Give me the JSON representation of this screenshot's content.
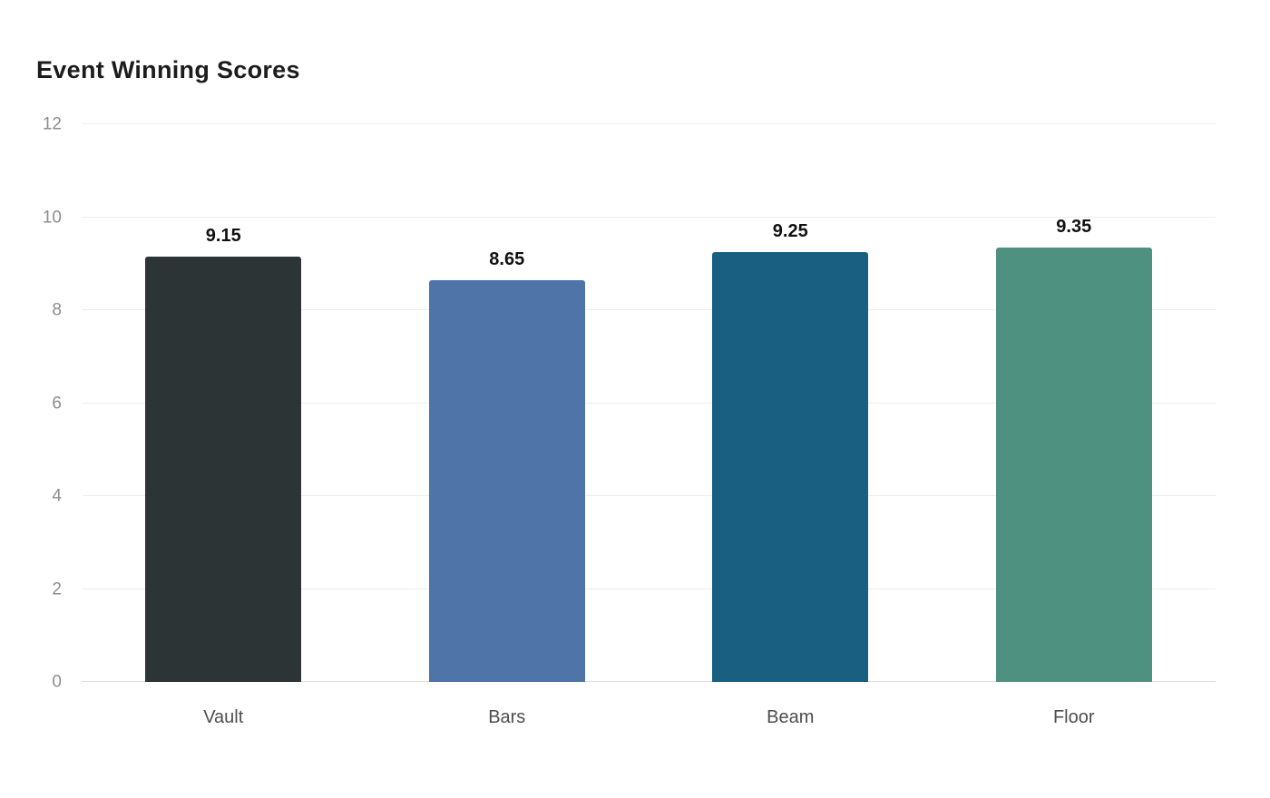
{
  "chart_data": {
    "type": "bar",
    "title": "Event Winning Scores",
    "categories": [
      "Vault",
      "Bars",
      "Beam",
      "Floor"
    ],
    "values": [
      9.15,
      8.65,
      9.25,
      9.35
    ],
    "value_labels": [
      "9.15",
      "8.65",
      "9.25",
      "9.35"
    ],
    "bar_colors": [
      "#2d3436",
      "#4e74a8",
      "#185f82",
      "#4f9180"
    ],
    "xlabel": "",
    "ylabel": "",
    "ylim": [
      0,
      12
    ],
    "yticks": [
      0,
      2,
      4,
      6,
      8,
      10,
      12
    ],
    "grid": true,
    "legend": "none",
    "background_color": "#ffffff",
    "grid_color": "#ededed",
    "tick_label_color": "#8d8d8d",
    "category_label_color": "#4d4d4d",
    "title_color": "#1c1c1c"
  }
}
